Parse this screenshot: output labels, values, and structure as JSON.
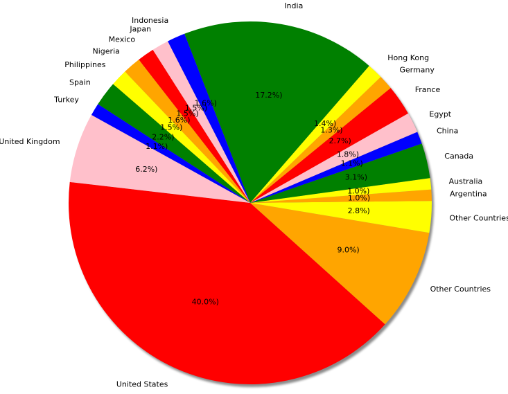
{
  "chart_data": {
    "type": "pie",
    "categories": [
      "United States",
      "Other Countries",
      "Other Countries",
      "Argentina",
      "Australia",
      "Canada",
      "China",
      "Egypt",
      "France",
      "Germany",
      "Hong Kong",
      "India",
      "Indonesia",
      "Japan",
      "Mexico",
      "Nigeria",
      "Philippines",
      "Spain",
      "Turkey",
      "United Kingdom"
    ],
    "values": [
      40.0,
      9.0,
      2.8,
      1.0,
      1.0,
      3.1,
      1.1,
      1.8,
      2.7,
      1.3,
      1.4,
      17.2,
      1.6,
      1.5,
      1.5,
      1.6,
      1.5,
      2.2,
      1.1,
      6.2
    ],
    "value_labels": [
      "40.0%)",
      "9.0%)",
      "2.8%)",
      "1.0%)",
      "1.0%)",
      "3.1%)",
      "1.1%)",
      "1.8%)",
      "2.7%)",
      "1.3%)",
      "1.4%)",
      "17.2%)",
      "1.6%)",
      "1.5%)",
      "1.5%)",
      "1.6%)",
      "1.5%)",
      "2.2%)",
      "1.1%)",
      "6.2%)"
    ],
    "colors": [
      "red",
      "orange",
      "yellow",
      "orange",
      "yellow",
      "green",
      "blue",
      "pink",
      "red",
      "orange",
      "yellow",
      "green",
      "blue",
      "pink",
      "red",
      "orange",
      "yellow",
      "green",
      "blue",
      "pink"
    ],
    "shadow": true
  }
}
